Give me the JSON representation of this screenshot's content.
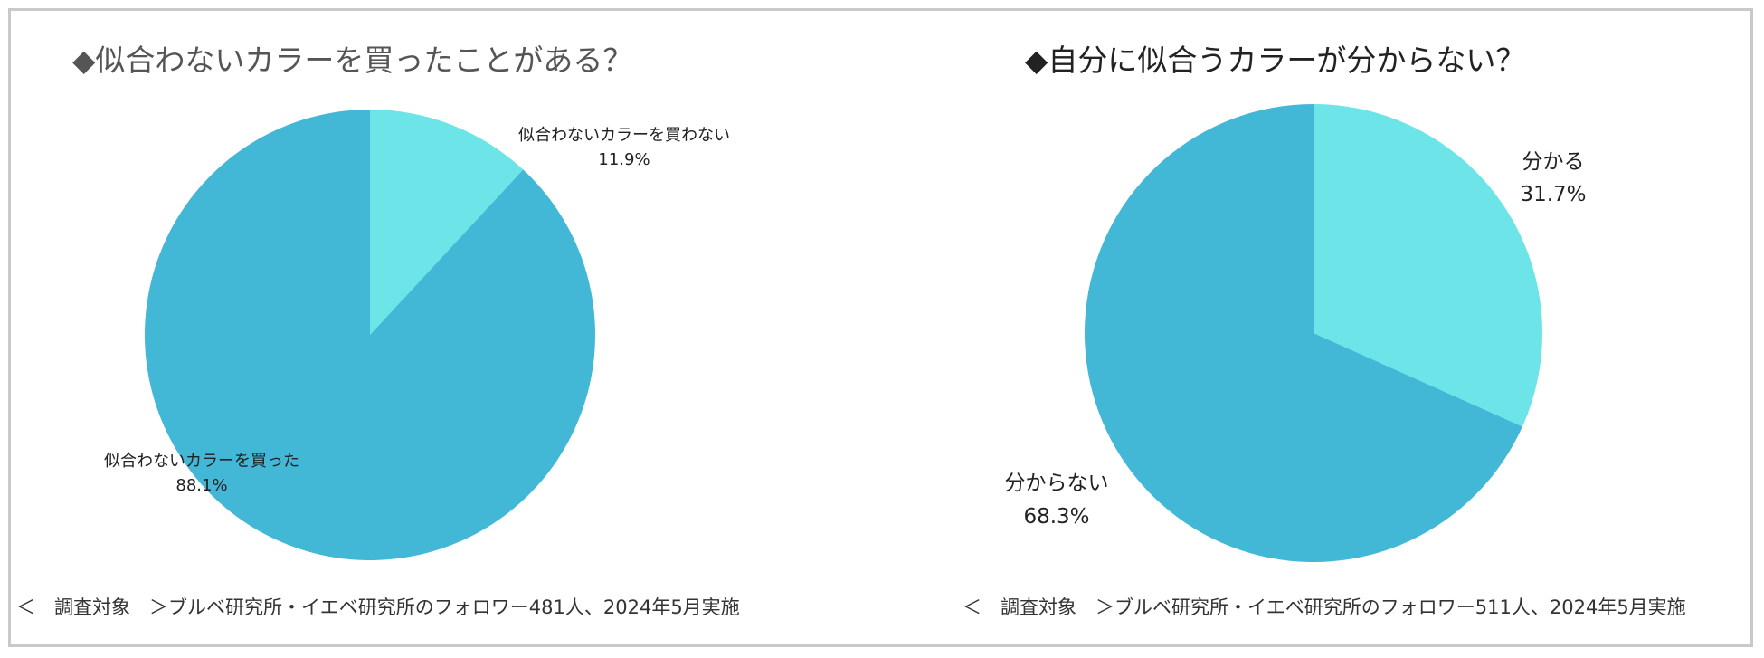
{
  "chart_data": [
    {
      "type": "pie",
      "title": "◆似合わないカラーを買ったことがある？",
      "colors": [
        "#6de5e8",
        "#42b7d6"
      ],
      "slices": [
        {
          "label": "似合わないカラーを買わない",
          "value": 11.9,
          "value_text": "11.9%"
        },
        {
          "label": "似合わないカラーを買った",
          "value": 88.1,
          "value_text": "88.1%"
        }
      ],
      "footnote": "＜　調査対象　＞ブルベ研究所・イエベ研究所のフォロワー481人、2024年5月実施"
    },
    {
      "type": "pie",
      "title": "◆自分に似合うカラーが分からない？",
      "colors": [
        "#6de5e8",
        "#42b7d6"
      ],
      "slices": [
        {
          "label": "分かる",
          "value": 31.7,
          "value_text": "31.7%"
        },
        {
          "label": "分からない",
          "value": 68.3,
          "value_text": "68.3%"
        }
      ],
      "footnote": "＜　調査対象　＞ブルベ研究所・イエベ研究所のフォロワー511人、2024年5月実施"
    }
  ]
}
